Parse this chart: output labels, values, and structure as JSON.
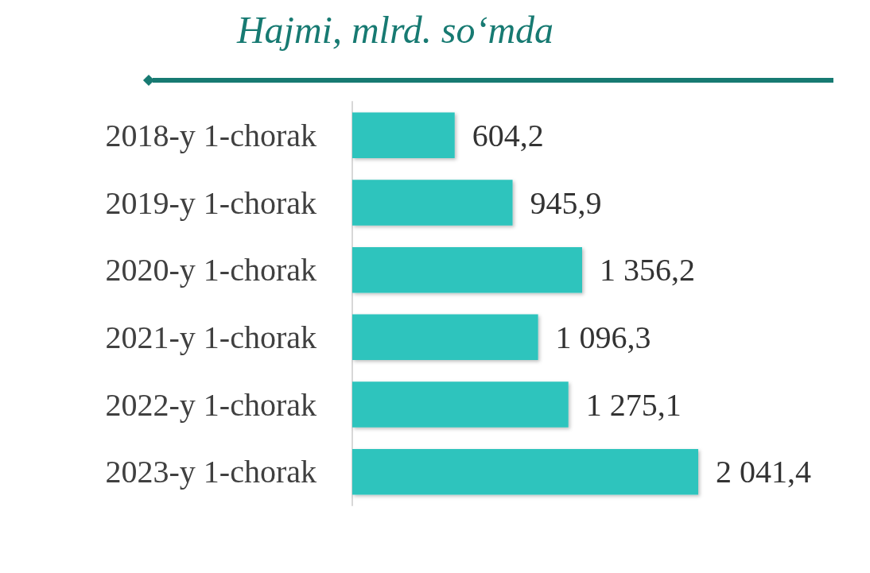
{
  "chart_data": {
    "type": "bar",
    "orientation": "horizontal",
    "title": "Hajmi, mlrd. so‘mda",
    "categories": [
      "2018-y 1-chorak",
      "2019-y 1-chorak",
      "2020-y 1-chorak",
      "2021-y 1-chorak",
      "2022-y 1-chorak",
      "2023-y 1-chorak"
    ],
    "values": [
      604.2,
      945.9,
      1356.2,
      1096.3,
      1275.1,
      2041.4
    ],
    "value_labels": [
      "604,2",
      "945,9",
      "1 356,2",
      "1 096,3",
      "1 275,1",
      "2 041,4"
    ],
    "color": "#2ec4bd"
  }
}
